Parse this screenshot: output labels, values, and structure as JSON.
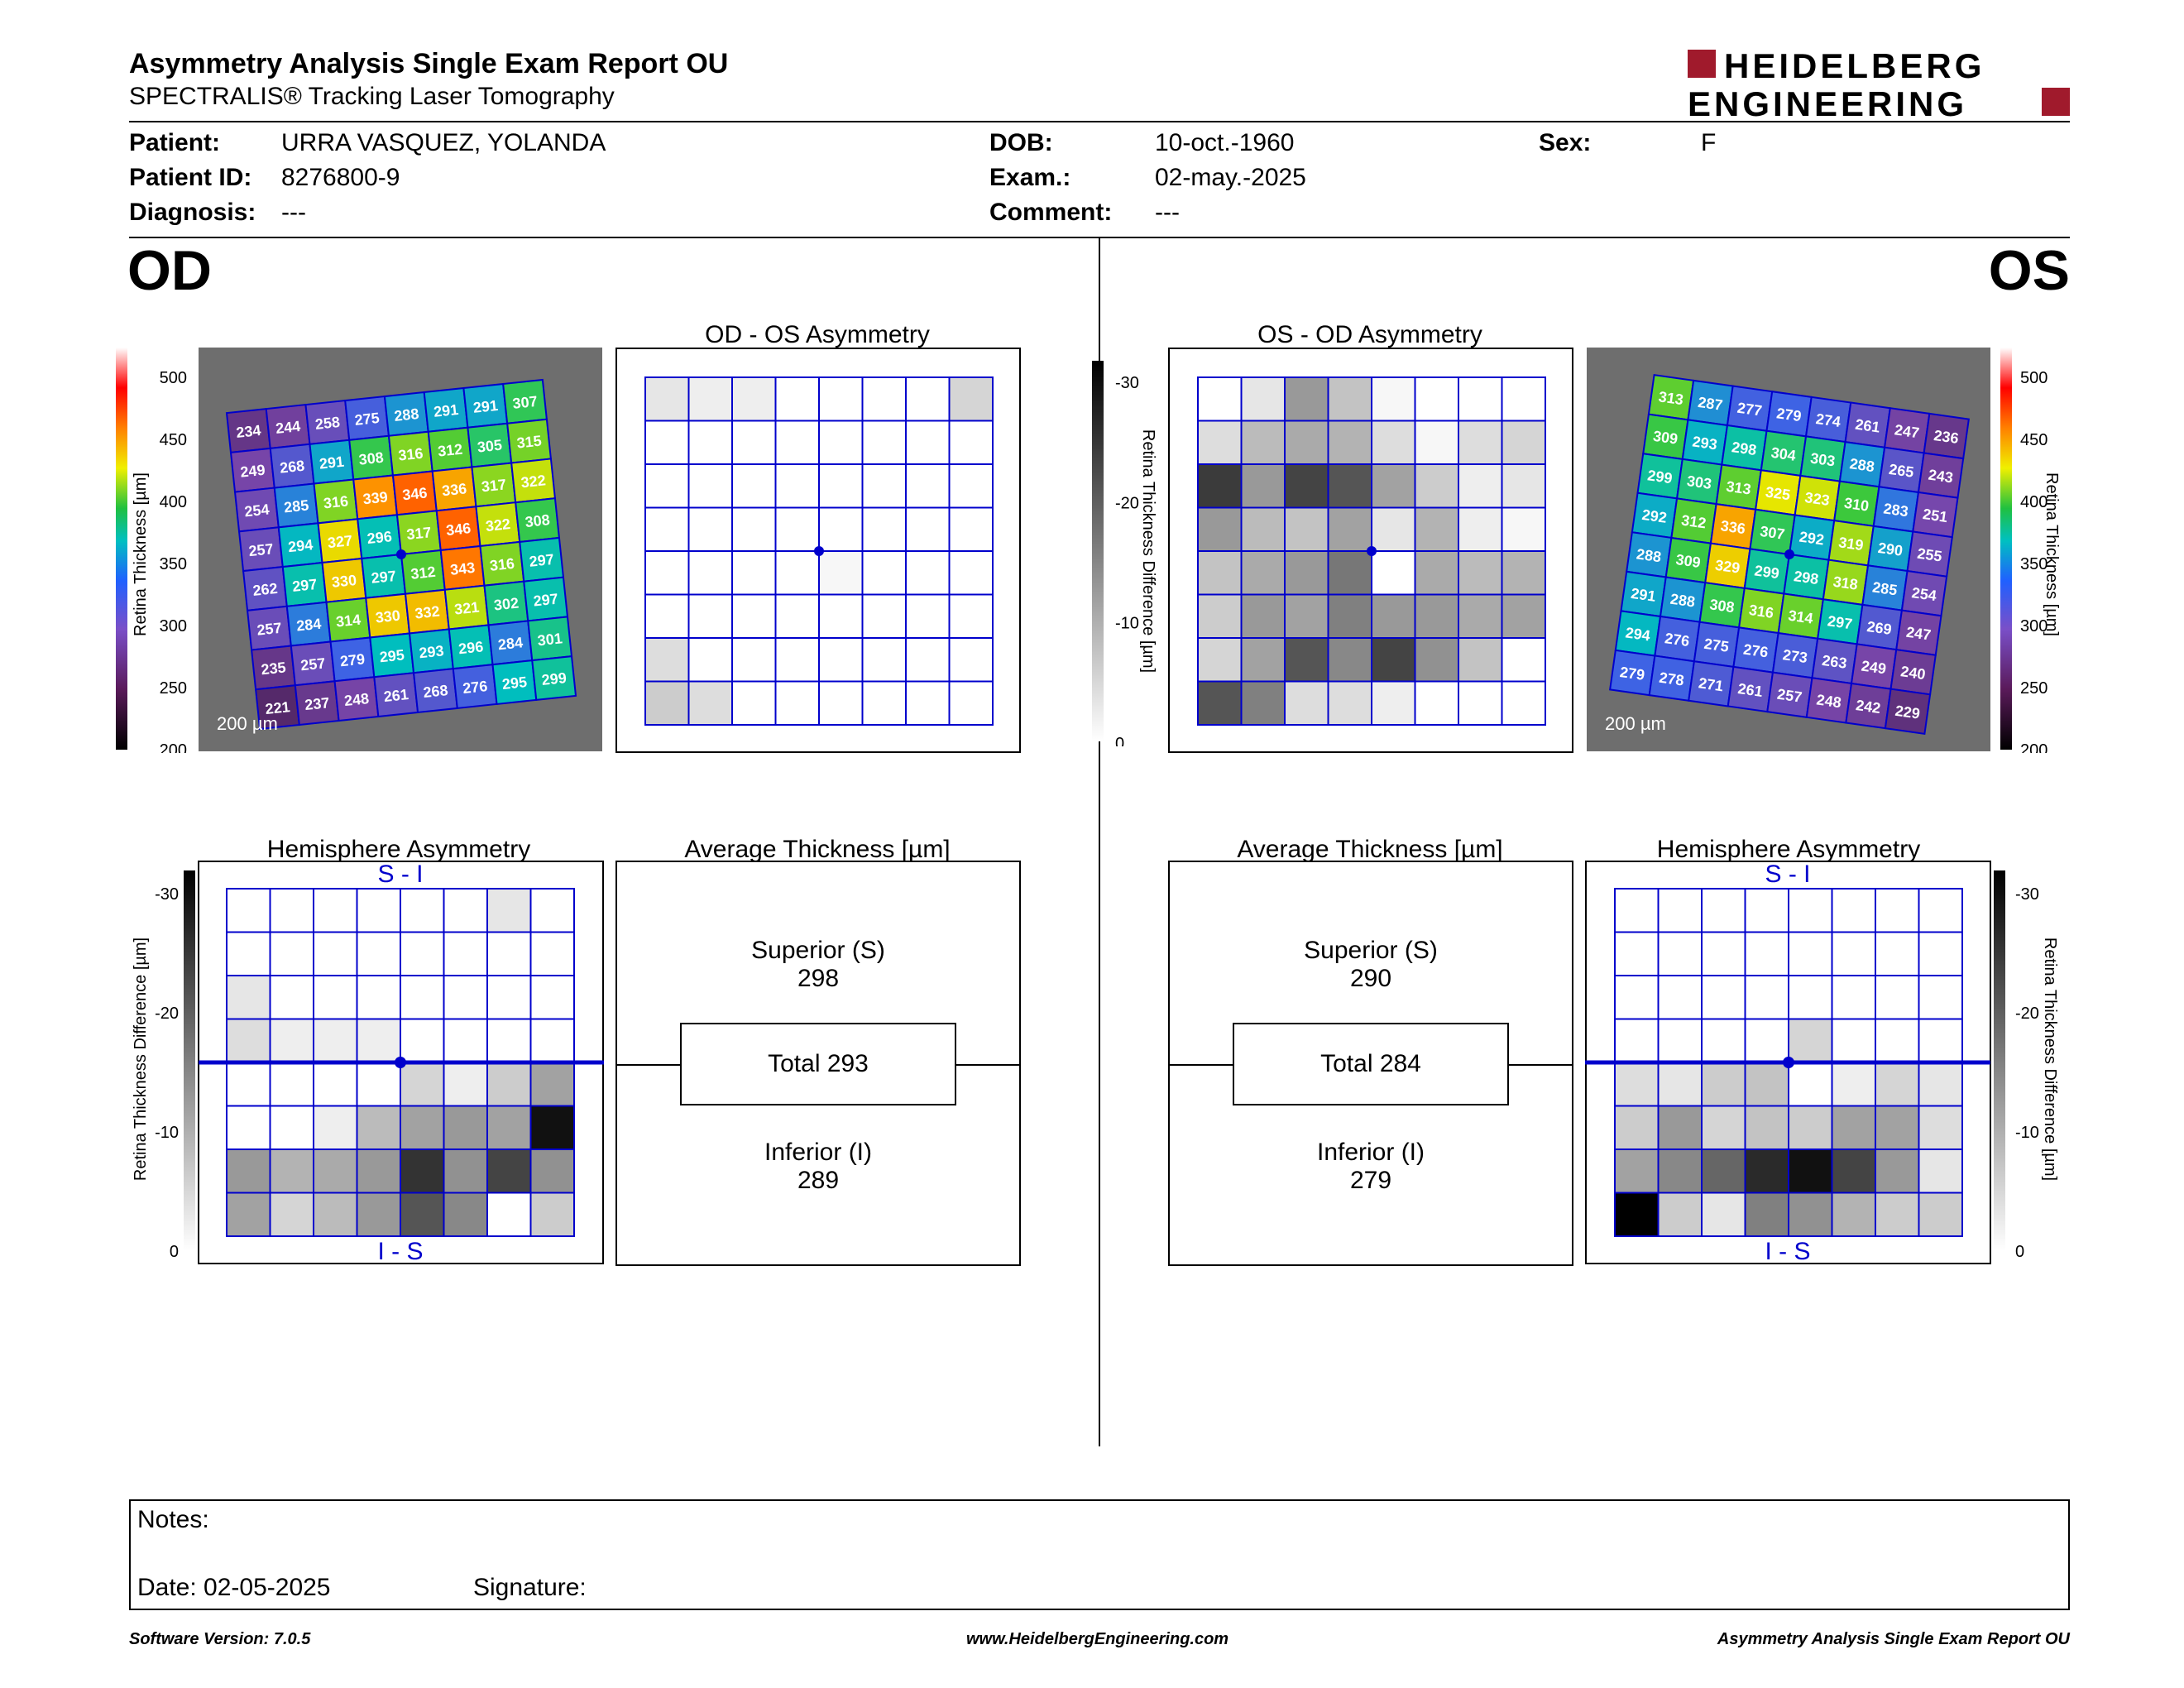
{
  "header": {
    "title": "Asymmetry Analysis Single Exam Report OU",
    "subtitle": "SPECTRALIS® Tracking Laser Tomography",
    "logo_line1": "HEIDELBERG",
    "logo_line2": "ENGINEERING"
  },
  "patient": {
    "patient_label": "Patient:",
    "patient_value": "URRA VASQUEZ, YOLANDA",
    "id_label": "Patient ID:",
    "id_value": "8276800-9",
    "diagnosis_label": "Diagnosis:",
    "diagnosis_value": "---",
    "dob_label": "DOB:",
    "dob_value": "10-oct.-1960",
    "exam_label": "Exam.:",
    "exam_value": "02-may.-2025",
    "comment_label": "Comment:",
    "comment_value": "---",
    "sex_label": "Sex:",
    "sex_value": "F"
  },
  "od": {
    "eye_label": "OD",
    "asym_title": "OD - OS Asymmetry",
    "hemi_title": "Hemisphere Asymmetry",
    "avg_title": "Average Thickness [µm]",
    "superior_label": "Superior (S)",
    "superior_value": "298",
    "total_text": "Total 293",
    "inferior_label": "Inferior (I)",
    "inferior_value": "289",
    "scale_text": "200 µm",
    "hemi_top": "S - I",
    "hemi_bottom": "I - S",
    "thickness_grid": [
      [
        234,
        244,
        258,
        275,
        288,
        291,
        291,
        307
      ],
      [
        249,
        268,
        291,
        308,
        316,
        312,
        305,
        315
      ],
      [
        254,
        285,
        316,
        339,
        346,
        336,
        317,
        322
      ],
      [
        257,
        294,
        327,
        296,
        317,
        346,
        322,
        308
      ],
      [
        262,
        297,
        330,
        297,
        312,
        343,
        316,
        297
      ],
      [
        257,
        284,
        314,
        330,
        332,
        321,
        302,
        297
      ],
      [
        235,
        257,
        279,
        295,
        293,
        296,
        284,
        301
      ],
      [
        221,
        237,
        248,
        261,
        268,
        276,
        295,
        299
      ]
    ],
    "asym_grid": [
      [
        3,
        2,
        2,
        0,
        0,
        0,
        0,
        5
      ],
      [
        0,
        0,
        0,
        0,
        0,
        0,
        0,
        0
      ],
      [
        0,
        0,
        0,
        0,
        0,
        0,
        0,
        0
      ],
      [
        0,
        0,
        0,
        0,
        0,
        0,
        0,
        0
      ],
      [
        0,
        0,
        0,
        0,
        1,
        0,
        0,
        0
      ],
      [
        0,
        0,
        0,
        0,
        0,
        0,
        0,
        0
      ],
      [
        4,
        0,
        0,
        0,
        0,
        0,
        0,
        0
      ],
      [
        6,
        4,
        0,
        0,
        0,
        0,
        0,
        0
      ]
    ],
    "hemi_grid": [
      [
        0,
        0,
        0,
        0,
        0,
        0,
        3,
        0
      ],
      [
        0,
        0,
        0,
        0,
        0,
        0,
        0,
        0
      ],
      [
        3,
        0,
        0,
        0,
        0,
        0,
        0,
        0
      ],
      [
        4,
        2,
        2,
        2,
        0,
        0,
        0,
        0
      ],
      [
        0,
        0,
        0,
        0,
        5,
        2,
        6,
        11
      ],
      [
        0,
        0,
        2,
        8,
        11,
        12,
        11,
        28
      ],
      [
        12,
        9,
        10,
        12,
        24,
        13,
        22,
        13
      ],
      [
        11,
        5,
        8,
        12,
        20,
        14,
        0,
        6
      ]
    ]
  },
  "os": {
    "eye_label": "OS",
    "asym_title": "OS - OD Asymmetry",
    "hemi_title": "Hemisphere Asymmetry",
    "avg_title": "Average Thickness [µm]",
    "superior_label": "Superior (S)",
    "superior_value": "290",
    "total_text": "Total 284",
    "inferior_label": "Inferior (I)",
    "inferior_value": "279",
    "scale_text": "200 µm",
    "hemi_top": "S - I",
    "hemi_bottom": "I - S",
    "thickness_grid": [
      [
        313,
        287,
        277,
        279,
        274,
        261,
        247,
        236
      ],
      [
        309,
        293,
        298,
        304,
        303,
        288,
        265,
        243
      ],
      [
        299,
        303,
        313,
        325,
        323,
        310,
        283,
        251
      ],
      [
        292,
        312,
        336,
        307,
        292,
        319,
        290,
        255
      ],
      [
        288,
        309,
        329,
        299,
        298,
        318,
        285,
        254
      ],
      [
        291,
        288,
        308,
        316,
        314,
        297,
        269,
        247
      ],
      [
        294,
        276,
        275,
        276,
        273,
        263,
        249,
        240
      ],
      [
        279,
        278,
        271,
        261,
        257,
        248,
        242,
        229
      ]
    ],
    "asym_grid": [
      [
        0,
        3,
        12,
        7,
        1,
        0,
        0,
        0
      ],
      [
        4,
        8,
        10,
        9,
        4,
        1,
        4,
        5
      ],
      [
        23,
        12,
        22,
        20,
        11,
        6,
        2,
        3
      ],
      [
        12,
        8,
        7,
        11,
        3,
        9,
        2,
        1
      ],
      [
        7,
        10,
        12,
        16,
        0,
        10,
        8,
        9
      ],
      [
        6,
        12,
        11,
        15,
        12,
        12,
        10,
        11
      ],
      [
        5,
        11,
        20,
        14,
        22,
        13,
        7,
        0
      ],
      [
        20,
        15,
        4,
        4,
        2,
        0,
        0,
        0
      ]
    ],
    "hemi_grid": [
      [
        0,
        0,
        0,
        0,
        0,
        0,
        0,
        0
      ],
      [
        0,
        0,
        0,
        0,
        0,
        0,
        0,
        0
      ],
      [
        0,
        0,
        0,
        0,
        0,
        0,
        0,
        0
      ],
      [
        0,
        0,
        0,
        0,
        5,
        0,
        0,
        0
      ],
      [
        4,
        3,
        6,
        7,
        0,
        2,
        5,
        3
      ],
      [
        6,
        12,
        5,
        7,
        6,
        11,
        11,
        4
      ],
      [
        11,
        14,
        18,
        25,
        28,
        22,
        12,
        3
      ],
      [
        30,
        6,
        3,
        15,
        13,
        9,
        6,
        6
      ]
    ]
  },
  "colorbar": {
    "thickness_ticks": [
      "500",
      "450",
      "400",
      "350",
      "300",
      "250",
      "200"
    ],
    "thickness_label": "Retina Thickness [µm]",
    "diff_ticks": [
      "-30",
      "-20",
      "-10",
      "0"
    ],
    "diff_label": "Retina Thickness Difference [µm]"
  },
  "notes": {
    "notes_label": "Notes:",
    "date_text": "Date: 02-05-2025",
    "signature_label": "Signature:"
  },
  "footer": {
    "left": "Software Version: 7.0.5",
    "center": "www.HeidelbergEngineering.com",
    "right": "Asymmetry Analysis Single Exam Report OU"
  },
  "colors": {
    "grid_blue": "#0000cc",
    "brand_red": "#a01a2c"
  }
}
